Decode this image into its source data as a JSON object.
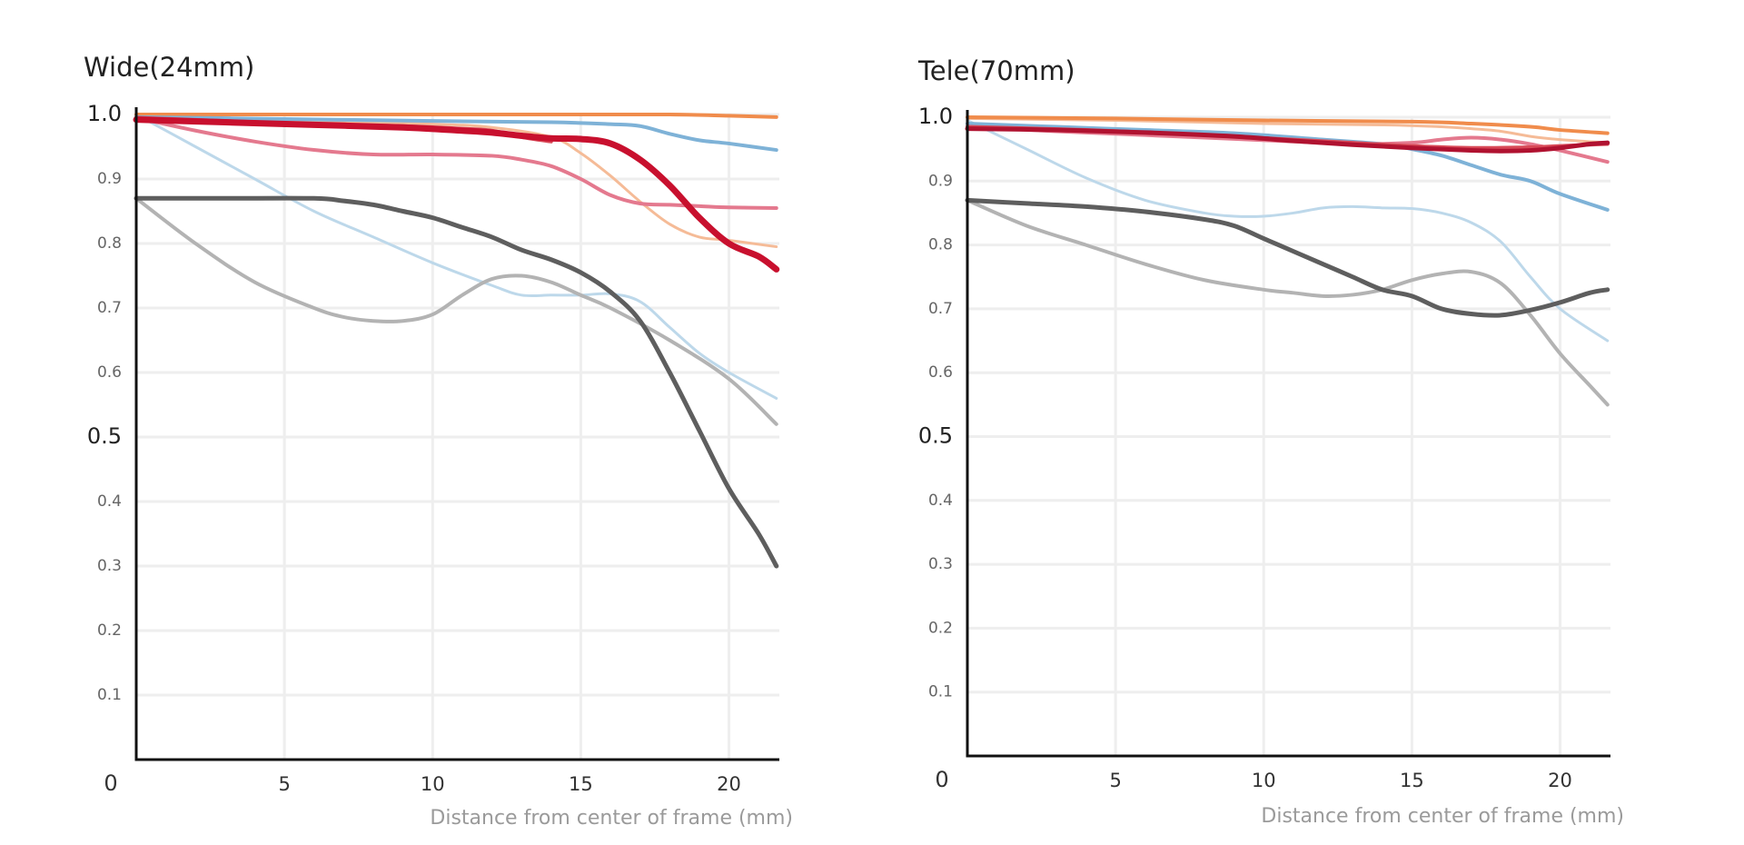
{
  "chart_data": [
    {
      "type": "line",
      "title": "Wide(24mm)",
      "xlabel": "Distance from center of frame (mm)",
      "ylabel": "",
      "xlim": [
        0,
        21.7
      ],
      "ylim": [
        0,
        1.0
      ],
      "x_ticks": [
        "0",
        "5",
        "10",
        "15",
        "20"
      ],
      "y_ticks": [
        "1.0",
        "0.9",
        "0.8",
        "0.7",
        "0.6",
        "0.5",
        "0.4",
        "0.3",
        "0.2",
        "0.1"
      ],
      "grid": true,
      "series": [
        {
          "color": "#bdd8ea",
          "width": 3,
          "points": [
            [
              0,
              1.0
            ],
            [
              2,
              0.95
            ],
            [
              4,
              0.9
            ],
            [
              6,
              0.85
            ],
            [
              8,
              0.81
            ],
            [
              10,
              0.77
            ],
            [
              12,
              0.735
            ],
            [
              13,
              0.72
            ],
            [
              14,
              0.72
            ],
            [
              15,
              0.72
            ],
            [
              16,
              0.722
            ],
            [
              17,
              0.71
            ],
            [
              18,
              0.67
            ],
            [
              19,
              0.63
            ],
            [
              20,
              0.6
            ],
            [
              21.6,
              0.56
            ]
          ]
        },
        {
          "color": "#b3b3b3",
          "width": 4,
          "points": [
            [
              0,
              0.87
            ],
            [
              2,
              0.8
            ],
            [
              4,
              0.74
            ],
            [
              6,
              0.7
            ],
            [
              7,
              0.686
            ],
            [
              8,
              0.68
            ],
            [
              9,
              0.68
            ],
            [
              10,
              0.69
            ],
            [
              11,
              0.72
            ],
            [
              12,
              0.745
            ],
            [
              13,
              0.75
            ],
            [
              14,
              0.74
            ],
            [
              15,
              0.72
            ],
            [
              16,
              0.7
            ],
            [
              18,
              0.65
            ],
            [
              20,
              0.59
            ],
            [
              21.6,
              0.52
            ]
          ]
        },
        {
          "color": "#5e5e5e",
          "width": 5,
          "points": [
            [
              0,
              0.87
            ],
            [
              3,
              0.87
            ],
            [
              6,
              0.87
            ],
            [
              7,
              0.866
            ],
            [
              8,
              0.86
            ],
            [
              9,
              0.85
            ],
            [
              10,
              0.84
            ],
            [
              11,
              0.825
            ],
            [
              12,
              0.81
            ],
            [
              13,
              0.79
            ],
            [
              14,
              0.775
            ],
            [
              15,
              0.755
            ],
            [
              16,
              0.725
            ],
            [
              17,
              0.68
            ],
            [
              18,
              0.6
            ],
            [
              19,
              0.51
            ],
            [
              20,
              0.42
            ],
            [
              21,
              0.35
            ],
            [
              21.6,
              0.3
            ]
          ]
        },
        {
          "color": "#f5bb97",
          "width": 3,
          "points": [
            [
              0,
              0.995
            ],
            [
              5,
              0.99
            ],
            [
              10,
              0.985
            ],
            [
              12,
              0.98
            ],
            [
              14,
              0.965
            ],
            [
              15,
              0.94
            ],
            [
              16,
              0.905
            ],
            [
              17,
              0.865
            ],
            [
              18,
              0.83
            ],
            [
              19,
              0.81
            ],
            [
              20,
              0.805
            ],
            [
              21.6,
              0.795
            ]
          ]
        },
        {
          "color": "#f08c4c",
          "width": 4,
          "points": [
            [
              0,
              1.0
            ],
            [
              5,
              1.0
            ],
            [
              10,
              1.0
            ],
            [
              15,
              1.0
            ],
            [
              18,
              1.0
            ],
            [
              20,
              0.998
            ],
            [
              21.6,
              0.996
            ]
          ]
        },
        {
          "color": "#7eb2d7",
          "width": 4,
          "points": [
            [
              0,
              0.996
            ],
            [
              5,
              0.993
            ],
            [
              10,
              0.99
            ],
            [
              14,
              0.988
            ],
            [
              16,
              0.985
            ],
            [
              17,
              0.982
            ],
            [
              18,
              0.97
            ],
            [
              19,
              0.96
            ],
            [
              20,
              0.955
            ],
            [
              21.6,
              0.945
            ]
          ]
        },
        {
          "color": "#e4798e",
          "width": 4,
          "points": [
            [
              0,
              0.995
            ],
            [
              2,
              0.975
            ],
            [
              4,
              0.958
            ],
            [
              6,
              0.945
            ],
            [
              8,
              0.938
            ],
            [
              10,
              0.938
            ],
            [
              12,
              0.936
            ],
            [
              13,
              0.93
            ],
            [
              14,
              0.92
            ],
            [
              15,
              0.9
            ],
            [
              16,
              0.875
            ],
            [
              17,
              0.862
            ],
            [
              18,
              0.86
            ],
            [
              19,
              0.858
            ],
            [
              20,
              0.856
            ],
            [
              21.6,
              0.855
            ]
          ]
        },
        {
          "color": "#d84a58",
          "width": 4,
          "points": [
            [
              0,
              0.995
            ],
            [
              3,
              0.99
            ],
            [
              6,
              0.985
            ],
            [
              9,
              0.982
            ],
            [
              11,
              0.978
            ],
            [
              12,
              0.975
            ],
            [
              13,
              0.965
            ],
            [
              14,
              0.958
            ]
          ]
        },
        {
          "color": "#c8102e",
          "width": 7,
          "points": [
            [
              0,
              0.992
            ],
            [
              3,
              0.988
            ],
            [
              6,
              0.984
            ],
            [
              9,
              0.98
            ],
            [
              11,
              0.975
            ],
            [
              12,
              0.972
            ],
            [
              13,
              0.967
            ],
            [
              14,
              0.963
            ],
            [
              15,
              0.962
            ],
            [
              16,
              0.955
            ],
            [
              17,
              0.93
            ],
            [
              18,
              0.89
            ],
            [
              19,
              0.84
            ],
            [
              20,
              0.8
            ],
            [
              21,
              0.78
            ],
            [
              21.6,
              0.76
            ]
          ]
        }
      ]
    },
    {
      "type": "line",
      "title": "Tele(70mm)",
      "xlabel": "Distance from center of frame (mm)",
      "ylabel": "",
      "xlim": [
        0,
        21.7
      ],
      "ylim": [
        0,
        1.0
      ],
      "x_ticks": [
        "0",
        "5",
        "10",
        "15",
        "20"
      ],
      "y_ticks": [
        "1.0",
        "0.9",
        "0.8",
        "0.7",
        "0.6",
        "0.5",
        "0.4",
        "0.3",
        "0.2",
        "0.1"
      ],
      "grid": true,
      "series": [
        {
          "color": "#bdd8ea",
          "width": 3,
          "points": [
            [
              0,
              0.995
            ],
            [
              2,
              0.95
            ],
            [
              4,
              0.905
            ],
            [
              6,
              0.87
            ],
            [
              8,
              0.85
            ],
            [
              9,
              0.845
            ],
            [
              10,
              0.845
            ],
            [
              11,
              0.85
            ],
            [
              12,
              0.858
            ],
            [
              13,
              0.86
            ],
            [
              14,
              0.858
            ],
            [
              15,
              0.857
            ],
            [
              16,
              0.85
            ],
            [
              17,
              0.835
            ],
            [
              18,
              0.805
            ],
            [
              19,
              0.75
            ],
            [
              20,
              0.7
            ],
            [
              21.6,
              0.65
            ]
          ]
        },
        {
          "color": "#b3b3b3",
          "width": 4,
          "points": [
            [
              0,
              0.87
            ],
            [
              2,
              0.83
            ],
            [
              4,
              0.8
            ],
            [
              6,
              0.77
            ],
            [
              8,
              0.745
            ],
            [
              10,
              0.73
            ],
            [
              11,
              0.725
            ],
            [
              12,
              0.72
            ],
            [
              13,
              0.722
            ],
            [
              14,
              0.73
            ],
            [
              15,
              0.745
            ],
            [
              16,
              0.755
            ],
            [
              17,
              0.758
            ],
            [
              18,
              0.74
            ],
            [
              19,
              0.69
            ],
            [
              20,
              0.63
            ],
            [
              21,
              0.58
            ],
            [
              21.6,
              0.55
            ]
          ]
        },
        {
          "color": "#5e5e5e",
          "width": 5,
          "points": [
            [
              0,
              0.87
            ],
            [
              2,
              0.865
            ],
            [
              4,
              0.86
            ],
            [
              6,
              0.852
            ],
            [
              8,
              0.84
            ],
            [
              9,
              0.83
            ],
            [
              10,
              0.81
            ],
            [
              11,
              0.79
            ],
            [
              12,
              0.77
            ],
            [
              13,
              0.75
            ],
            [
              14,
              0.73
            ],
            [
              15,
              0.72
            ],
            [
              16,
              0.7
            ],
            [
              17,
              0.692
            ],
            [
              18,
              0.69
            ],
            [
              19,
              0.698
            ],
            [
              20,
              0.71
            ],
            [
              21,
              0.725
            ],
            [
              21.6,
              0.73
            ]
          ]
        },
        {
          "color": "#f5bb97",
          "width": 3,
          "points": [
            [
              0,
              0.998
            ],
            [
              5,
              0.995
            ],
            [
              10,
              0.99
            ],
            [
              14,
              0.988
            ],
            [
              16,
              0.985
            ],
            [
              17,
              0.982
            ],
            [
              18,
              0.978
            ],
            [
              19,
              0.97
            ],
            [
              20,
              0.965
            ],
            [
              21.6,
              0.96
            ]
          ]
        },
        {
          "color": "#f08c4c",
          "width": 4,
          "points": [
            [
              0,
              1.0
            ],
            [
              5,
              0.998
            ],
            [
              10,
              0.995
            ],
            [
              15,
              0.993
            ],
            [
              17,
              0.99
            ],
            [
              19,
              0.985
            ],
            [
              20,
              0.98
            ],
            [
              21.6,
              0.975
            ]
          ]
        },
        {
          "color": "#7eb2d7",
          "width": 4,
          "points": [
            [
              0,
              0.99
            ],
            [
              3,
              0.985
            ],
            [
              6,
              0.98
            ],
            [
              9,
              0.975
            ],
            [
              12,
              0.965
            ],
            [
              14,
              0.958
            ],
            [
              15,
              0.95
            ],
            [
              16,
              0.94
            ],
            [
              17,
              0.925
            ],
            [
              18,
              0.91
            ],
            [
              19,
              0.9
            ],
            [
              20,
              0.88
            ],
            [
              21.6,
              0.855
            ]
          ]
        },
        {
          "color": "#e4798e",
          "width": 4,
          "points": [
            [
              0,
              0.985
            ],
            [
              3,
              0.978
            ],
            [
              6,
              0.972
            ],
            [
              9,
              0.966
            ],
            [
              11,
              0.962
            ],
            [
              13,
              0.958
            ],
            [
              15,
              0.96
            ],
            [
              16,
              0.965
            ],
            [
              17,
              0.968
            ],
            [
              18,
              0.965
            ],
            [
              19,
              0.958
            ],
            [
              20,
              0.948
            ],
            [
              21.6,
              0.93
            ]
          ]
        },
        {
          "color": "#d84a58",
          "width": 4,
          "points": [
            [
              0,
              0.985
            ],
            [
              4,
              0.98
            ],
            [
              8,
              0.972
            ],
            [
              11,
              0.965
            ],
            [
              13,
              0.96
            ],
            [
              15,
              0.955
            ],
            [
              17,
              0.952
            ],
            [
              19,
              0.953
            ],
            [
              20,
              0.955
            ],
            [
              21.6,
              0.958
            ]
          ]
        },
        {
          "color": "#b01230",
          "width": 5,
          "points": [
            [
              0,
              0.982
            ],
            [
              3,
              0.98
            ],
            [
              6,
              0.976
            ],
            [
              9,
              0.97
            ],
            [
              11,
              0.963
            ],
            [
              13,
              0.957
            ],
            [
              15,
              0.952
            ],
            [
              17,
              0.948
            ],
            [
              18,
              0.947
            ],
            [
              19,
              0.948
            ],
            [
              20,
              0.952
            ],
            [
              21,
              0.958
            ],
            [
              21.6,
              0.96
            ]
          ]
        }
      ]
    }
  ]
}
